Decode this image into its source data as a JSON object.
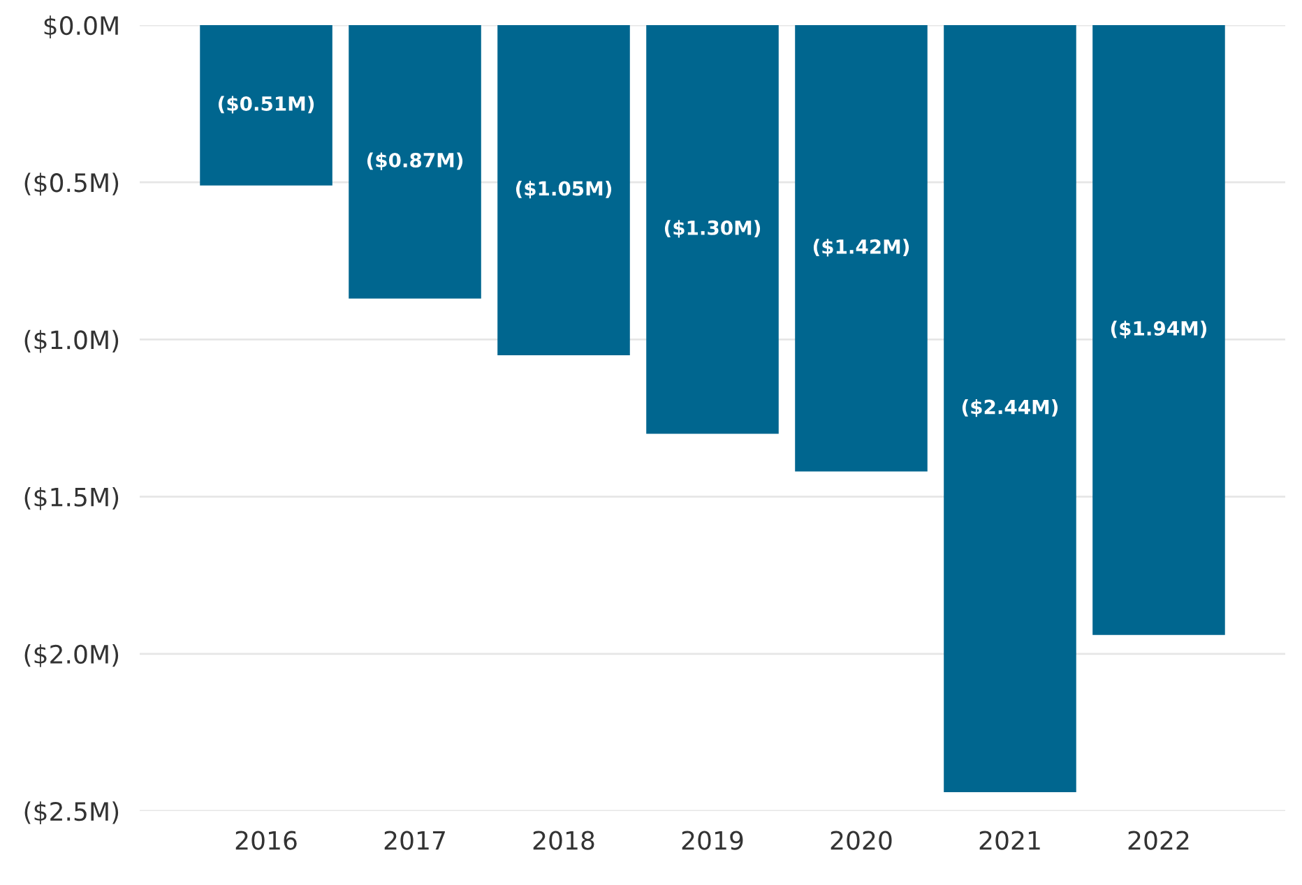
{
  "chart_data": {
    "type": "bar",
    "categories": [
      "2016",
      "2017",
      "2018",
      "2019",
      "2020",
      "2021",
      "2022"
    ],
    "values": [
      -0.51,
      -0.87,
      -1.05,
      -1.3,
      -1.42,
      -2.44,
      -1.94
    ],
    "value_labels": [
      "($0.51M)",
      "($0.87M)",
      "($1.05M)",
      "($1.30M)",
      "($1.42M)",
      "($2.44M)",
      "($1.94M)"
    ],
    "color": "#00668f",
    "ylim": [
      -2.5,
      0
    ],
    "yticks": [
      {
        "value": 0,
        "label": "$0.0M"
      },
      {
        "value": -0.5,
        "label": "($0.5M)"
      },
      {
        "value": -1.0,
        "label": "($1.0M)"
      },
      {
        "value": -1.5,
        "label": "($1.5M)"
      },
      {
        "value": -2.0,
        "label": "($2.0M)"
      },
      {
        "value": -2.5,
        "label": "($2.5M)"
      }
    ],
    "grid": "y"
  }
}
